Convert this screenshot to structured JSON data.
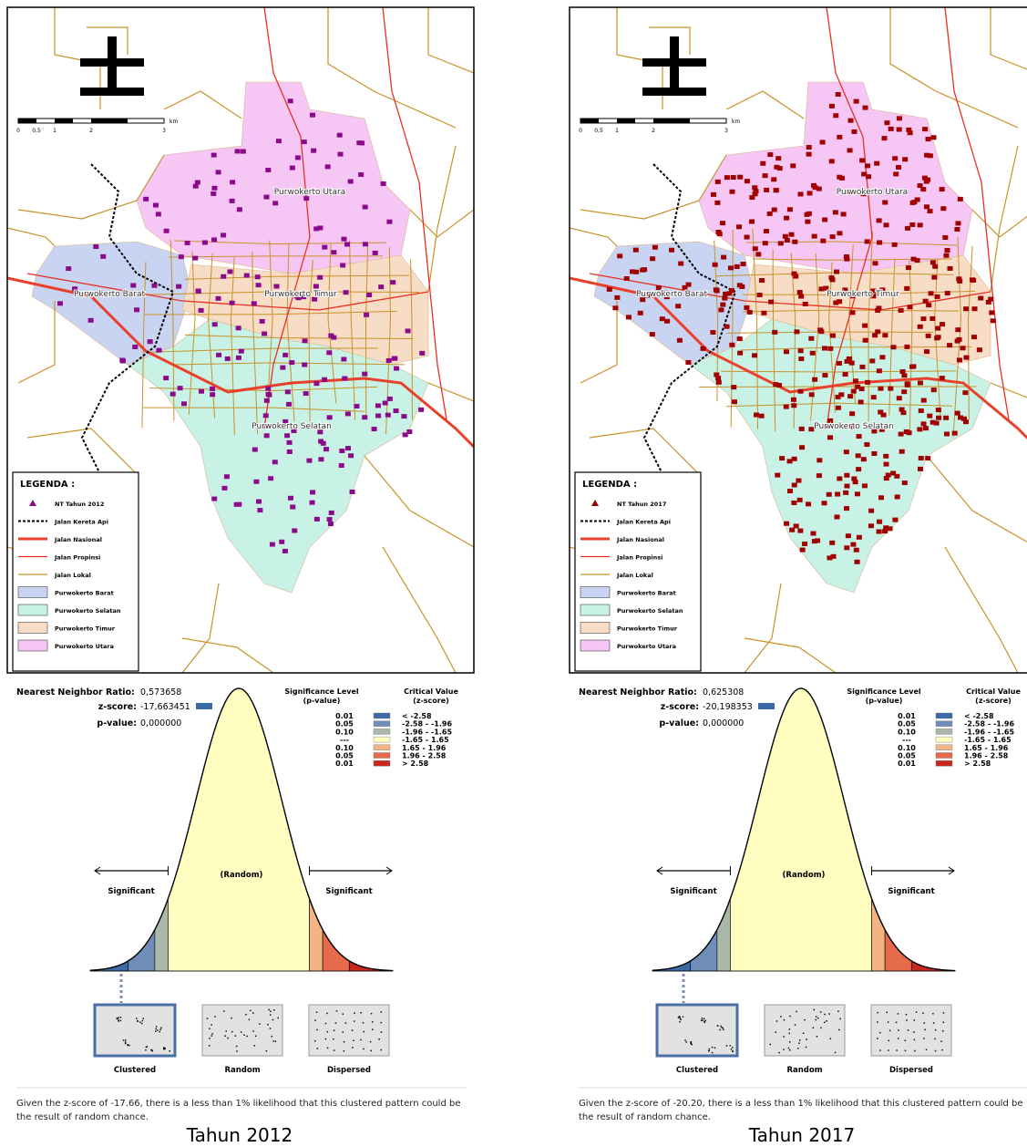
{
  "panels": [
    {
      "map": {
        "district_labels": [
          "Purwokerto Utara",
          "Purwokerto Barat",
          "Purwokerto Timur",
          "Purwokerto Selatan"
        ],
        "scale_labels": [
          "0",
          "0,5",
          "1",
          "2",
          "3"
        ],
        "scale_unit": "km",
        "legend": {
          "title": "LEGENDA :",
          "items": [
            "NT Tahun 2012",
            "Jalan Kereta Api",
            "Jalan Nasional",
            "Jalan Propinsi",
            "Jalan Lokal",
            "Purwokerto Barat",
            "Purwokerto Selatan",
            "Purwokerto Timur",
            "Purwokerto Utara"
          ]
        }
      },
      "report": {
        "ratio_label": "Nearest Neighbor Ratio:",
        "ratio": "0,573658",
        "z_label": "z-score:",
        "z": "-17,663451",
        "p_label": "p-value:",
        "p": "0,000000",
        "significance_header": [
          "Significance Level",
          "(p-value)"
        ],
        "critical_header": [
          "Critical Value",
          "(z-score)"
        ],
        "rows": [
          [
            "0.01",
            "< -2.58"
          ],
          [
            "0.05",
            "-2.58 - -1.96"
          ],
          [
            "0.10",
            "-1.96 - -1.65"
          ],
          [
            "---",
            "-1.65 - 1.65"
          ],
          [
            "0.10",
            "1.65 - 1.96"
          ],
          [
            "0.05",
            "1.96 - 2.58"
          ],
          [
            "0.01",
            "> 2.58"
          ]
        ],
        "random_label": "(Random)",
        "significant_left": "Significant",
        "significant_right": "Significant",
        "patterns": [
          "Clustered",
          "Random",
          "Dispersed"
        ],
        "conclusion": "Given the z-score of -17.66, there is a less than 1% likelihood that this clustered pattern could be the result of random chance."
      },
      "caption": "Tahun 2012"
    },
    {
      "map": {
        "district_labels": [
          "Purwokerto Utara",
          "Purwokerto Barat",
          "Purwokerto Timur",
          "Purwokerto Selatan"
        ],
        "scale_labels": [
          "0",
          "0,5",
          "1",
          "2",
          "3"
        ],
        "scale_unit": "km",
        "legend": {
          "title": "LEGENDA :",
          "items": [
            "NT Tahun 2017",
            "Jalan Kereta Api",
            "Jalan Nasional",
            "Jalan Propinsi",
            "Jalan Lokal",
            "Purwokerto Barat",
            "Purwokerto Selatan",
            "Purwokerto Timur",
            "Purwokerto Utara"
          ]
        }
      },
      "report": {
        "ratio_label": "Nearest Neighbor Ratio:",
        "ratio": "0,625308",
        "z_label": "z-score:",
        "z": "-20,198353",
        "p_label": "p-value:",
        "p": "0,000000",
        "significance_header": [
          "Significance Level",
          "(p-value)"
        ],
        "critical_header": [
          "Critical Value",
          "(z-score)"
        ],
        "rows": [
          [
            "0.01",
            "< -2.58"
          ],
          [
            "0.05",
            "-2.58 - -1.96"
          ],
          [
            "0.10",
            "-1.96 - -1.65"
          ],
          [
            "---",
            "-1.65 - 1.65"
          ],
          [
            "0.10",
            "1.65 - 1.96"
          ],
          [
            "0.05",
            "1.96 - 2.58"
          ],
          [
            "0.01",
            "> 2.58"
          ]
        ],
        "random_label": "(Random)",
        "significant_left": "Significant",
        "significant_right": "Significant",
        "patterns": [
          "Clustered",
          "Random",
          "Dispersed"
        ],
        "conclusion": "Given the z-score of -20.20, there is a less than 1% likelihood that this clustered pattern could be the result of random chance."
      },
      "caption": "Tahun 2017"
    }
  ]
}
